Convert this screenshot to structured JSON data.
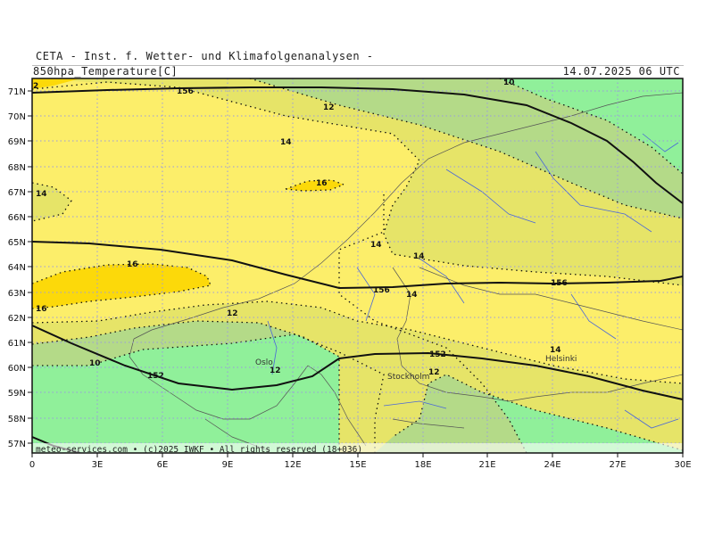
{
  "header": {
    "org_line": "CETA - Inst. f. Wetter- und Klimafolgenanalysen -",
    "field_label": "850hpa_Temperature[C]",
    "valid_time": "14.07.2025 06 UTC"
  },
  "axes": {
    "lat_labels": [
      "71N",
      "70N",
      "69N",
      "68N",
      "67N",
      "66N",
      "65N",
      "64N",
      "63N",
      "62N",
      "61N",
      "60N",
      "59N",
      "58N",
      "57N"
    ],
    "lon_labels": [
      "0",
      "3E",
      "6E",
      "9E",
      "12E",
      "15E",
      "18E",
      "21E",
      "24E",
      "27E",
      "30E"
    ]
  },
  "isotherm_labels": [
    "10",
    "12",
    "14",
    "16",
    "12",
    "14",
    "16",
    "14",
    "14",
    "14",
    "16",
    "12",
    "10",
    "12",
    "14",
    "14"
  ],
  "geopotential_labels": [
    "156",
    "156",
    "156",
    "152",
    "152"
  ],
  "corner_label": "2",
  "cities": [
    "Oslo",
    "Stockholm",
    "Helsinki"
  ],
  "footer": "meteo-services.com • (c)2025 IWKF • All rights reserved (18+036)",
  "colors": {
    "band_lt10": "#90f09a",
    "band_10_12": "#b4da88",
    "band_12_14": "#e6e468",
    "band_14_16": "#fcee6a",
    "band_gt16": "#fcd90a",
    "contour": "#111111",
    "grid": "#9a9ade",
    "rivers": "#4a68d8",
    "coast": "#555555"
  }
}
